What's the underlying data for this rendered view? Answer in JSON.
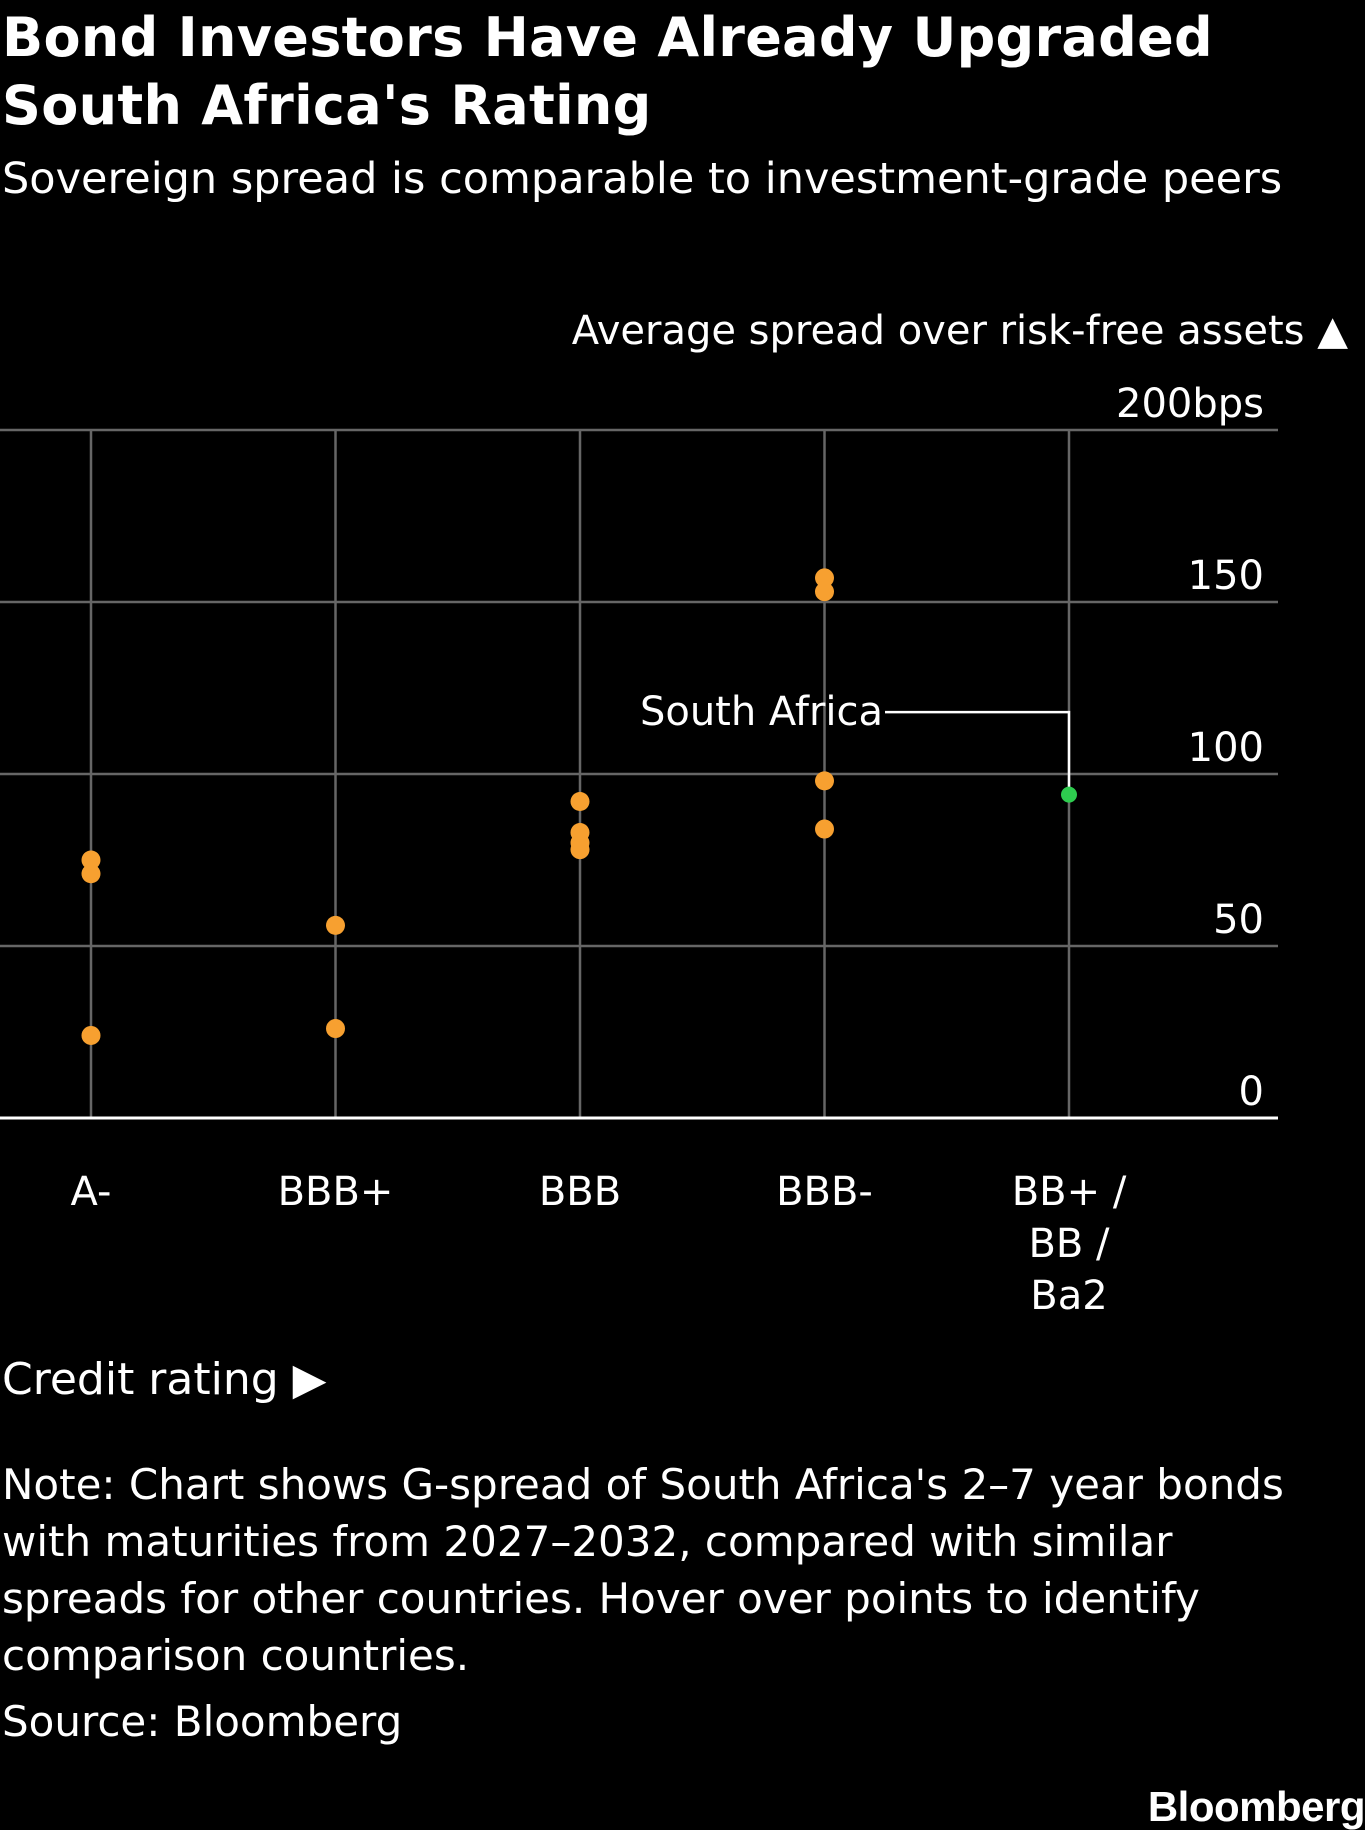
{
  "title": "Bond Investors Have Already Upgraded South Africa's Rating",
  "subtitle": "Sovereign spread is comparable to investment-grade peers",
  "note": "Note: Chart shows G-spread of South Africa's 2–7 year bonds with maturities from 2027–2032, compared with similar spreads for other countries. Hover over points to identify comparison countries.",
  "source": "Source: Bloomberg",
  "brand": "Bloomberg",
  "colors": {
    "background": "#000000",
    "peer_points": "#f7a030",
    "south_africa": "#2ecc4f",
    "grid": "#666666",
    "axis": "#ffffff"
  },
  "chart_data": {
    "type": "scatter",
    "ylabel": "Average spread over risk-free assets ▲",
    "xlabel": "Credit rating ▶",
    "ylim": [
      0,
      200
    ],
    "y_ticks": [
      {
        "value": 0,
        "label": "0"
      },
      {
        "value": 50,
        "label": "50"
      },
      {
        "value": 100,
        "label": "100"
      },
      {
        "value": 150,
        "label": "150"
      },
      {
        "value": 200,
        "label": "200bps"
      }
    ],
    "grid": true,
    "categories": [
      {
        "label": [
          "A-"
        ]
      },
      {
        "label": [
          "BBB+"
        ]
      },
      {
        "label": [
          "BBB"
        ]
      },
      {
        "label": [
          "BBB-"
        ]
      },
      {
        "label": [
          "BB+ /",
          "BB /",
          "Ba2"
        ]
      }
    ],
    "series": [
      {
        "points": [
          {
            "category": 0,
            "y": 75
          },
          {
            "category": 0,
            "y": 71
          },
          {
            "category": 0,
            "y": 24
          },
          {
            "category": 1,
            "y": 56
          },
          {
            "category": 1,
            "y": 26
          },
          {
            "category": 2,
            "y": 92
          },
          {
            "category": 2,
            "y": 83
          },
          {
            "category": 2,
            "y": 80
          },
          {
            "category": 2,
            "y": 78
          },
          {
            "category": 3,
            "y": 157
          },
          {
            "category": 3,
            "y": 153
          },
          {
            "category": 3,
            "y": 98
          },
          {
            "category": 3,
            "y": 84
          }
        ]
      },
      {
        "name": "South Africa",
        "points": [
          {
            "category": 4,
            "y": 94
          }
        ]
      }
    ],
    "annotations": [
      {
        "text": "South Africa",
        "series": 1,
        "point": 0
      }
    ]
  }
}
